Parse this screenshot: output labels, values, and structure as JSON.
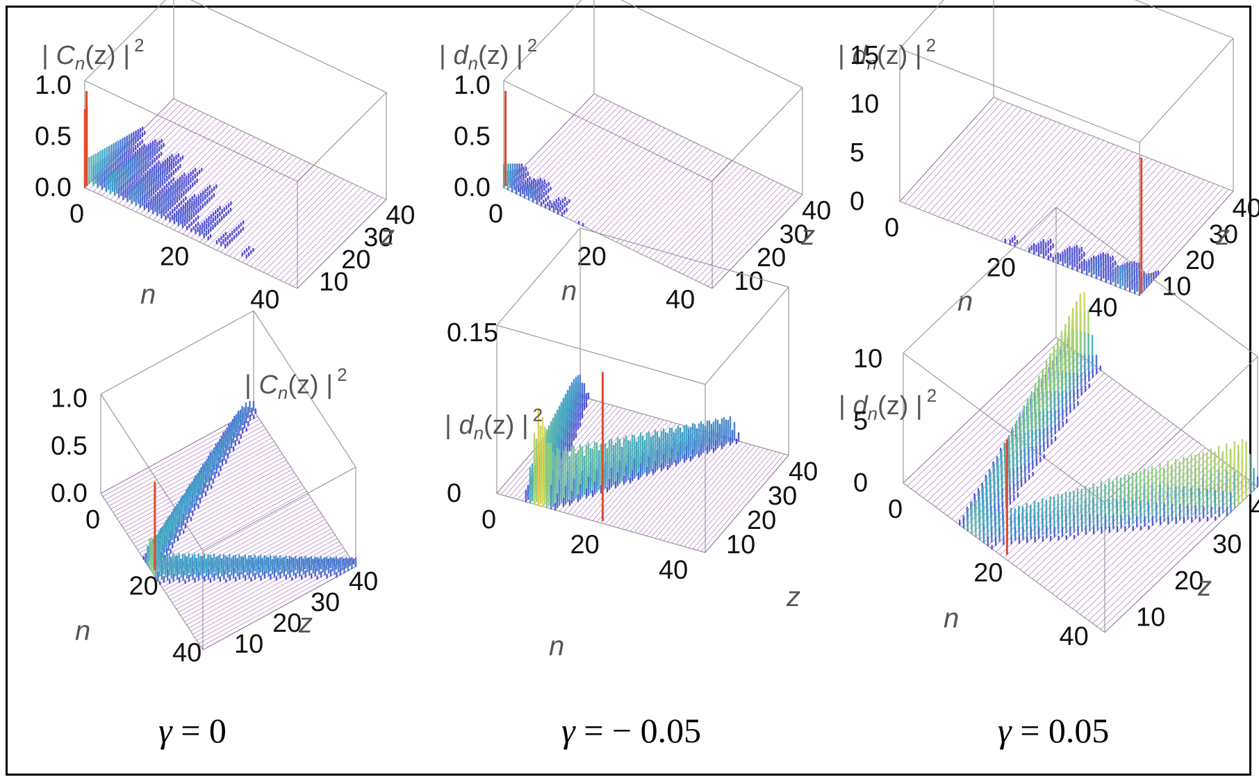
{
  "chart_data": [
    {
      "type": "surface3d",
      "position": "top-left",
      "zlabel": {
        "base": "C",
        "sub": "n",
        "arg": "(z)",
        "pow": "2"
      },
      "xlabel": "n",
      "ylabel": "z",
      "x_ticks": [
        "0",
        "20",
        "40"
      ],
      "y_ticks": [
        "10",
        "20",
        "30",
        "40"
      ],
      "z_ticks": [
        "0.0",
        "0.5",
        "1.0"
      ],
      "xlim": [
        0,
        50
      ],
      "ylim": [
        0,
        45
      ],
      "zlim": [
        0,
        1.0
      ],
      "peak_n": 0,
      "peak_value": 1.0,
      "description_mode": "decay"
    },
    {
      "type": "surface3d",
      "position": "top-center",
      "zlabel": {
        "base": "d",
        "sub": "n",
        "arg": "(z)",
        "pow": "2"
      },
      "xlabel": "n",
      "ylabel": "z",
      "x_ticks": [
        "0",
        "20",
        "40"
      ],
      "y_ticks": [
        "10",
        "20",
        "30",
        "40"
      ],
      "z_ticks": [
        "0.0",
        "0.5",
        "1.0"
      ],
      "xlim": [
        0,
        50
      ],
      "ylim": [
        0,
        45
      ],
      "zlim": [
        0,
        1.0
      ],
      "peak_n": 0,
      "peak_value": 1.0,
      "description_mode": "fast-decay"
    },
    {
      "type": "surface3d",
      "position": "top-right",
      "zlabel": {
        "base": "d",
        "sub": "n",
        "arg": "(z)",
        "pow": "2"
      },
      "xlabel": "n",
      "ylabel": "z",
      "x_ticks": [
        "0",
        "20",
        "40"
      ],
      "y_ticks": [
        "10",
        "20",
        "30",
        "40"
      ],
      "z_ticks": [
        "0",
        "5",
        "10",
        "15"
      ],
      "xlim": [
        0,
        50
      ],
      "ylim": [
        0,
        45
      ],
      "zlim": [
        0,
        15
      ],
      "peak_n": 50,
      "peak_value": 15,
      "description_mode": "growth"
    },
    {
      "type": "surface3d",
      "position": "bottom-left",
      "zlabel": {
        "base": "C",
        "sub": "n",
        "arg": "(z)",
        "pow": "2"
      },
      "xlabel": "n",
      "ylabel": "z",
      "x_ticks": [
        "0",
        "20",
        "40"
      ],
      "y_ticks": [
        "10",
        "20",
        "30",
        "40"
      ],
      "z_ticks": [
        "0.0",
        "0.5",
        "1.0"
      ],
      "xlim": [
        0,
        50
      ],
      "ylim": [
        0,
        45
      ],
      "zlim": [
        0,
        1.0
      ],
      "peak_n": 25,
      "peak_value": 1.0,
      "description_mode": "spread"
    },
    {
      "type": "surface3d",
      "position": "bottom-center",
      "zlabel": {
        "base": "d",
        "sub": "n",
        "arg": "(z)",
        "pow": "2"
      },
      "xlabel": "n",
      "ylabel": "z",
      "x_ticks": [
        "0",
        "20",
        "40"
      ],
      "y_ticks": [
        "10",
        "20",
        "30",
        "40"
      ],
      "z_ticks": [
        "0",
        "0.15"
      ],
      "xlim": [
        0,
        50
      ],
      "ylim": [
        0,
        45
      ],
      "zlim": [
        0,
        0.15
      ],
      "peak_n": 25,
      "peak_value": 0.15,
      "description_mode": "spread-decay"
    },
    {
      "type": "surface3d",
      "position": "bottom-right",
      "zlabel": {
        "base": "d",
        "sub": "n",
        "arg": "(z)",
        "pow": "2"
      },
      "xlabel": "n",
      "ylabel": "z",
      "x_ticks": [
        "0",
        "20",
        "40"
      ],
      "y_ticks": [
        "10",
        "20",
        "30",
        "40"
      ],
      "z_ticks": [
        "0",
        "5",
        "10"
      ],
      "xlim": [
        0,
        50
      ],
      "ylim": [
        0,
        45
      ],
      "zlim": [
        0,
        10
      ],
      "peak_n": 25,
      "peak_value": 10,
      "description_mode": "spread-growth"
    }
  ],
  "captions": [
    {
      "symbol": "γ",
      "text": " = 0"
    },
    {
      "symbol": "γ",
      "text": " = − 0.05"
    },
    {
      "symbol": "γ",
      "text": " = 0.05"
    }
  ],
  "colors": {
    "frame": "#c8a2c8",
    "surface": "#9b59b6",
    "low": "#5b3fd6",
    "mid": "#3fa8c8",
    "high": "#e8d85a",
    "peak": "#e04a2a"
  }
}
